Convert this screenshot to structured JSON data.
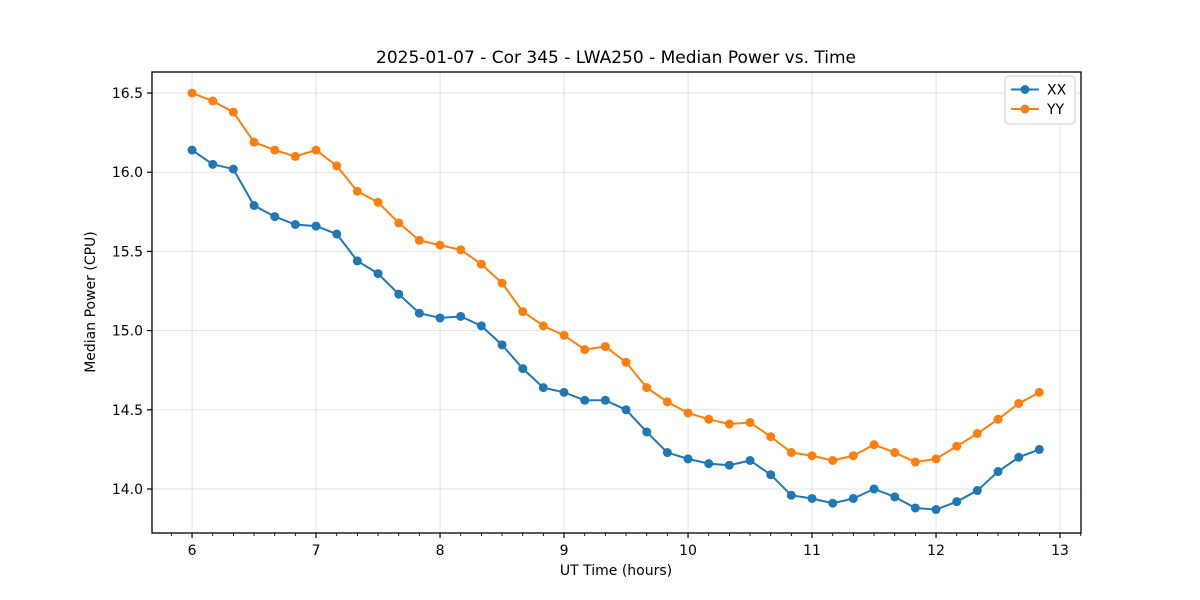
{
  "title": "2025-01-07 - Cor 345 - LWA250 - Median Power vs. Time",
  "chart_data": {
    "type": "line",
    "title": "2025-01-07 - Cor 345 - LWA250 - Median Power vs. Time",
    "xlabel": "UT Time (hours)",
    "ylabel": "Median Power (CPU)",
    "xlim": [
      5.677,
      13.169
    ],
    "ylim": [
      13.722,
      16.633
    ],
    "xticks": [
      6,
      7,
      8,
      9,
      10,
      11,
      12,
      13
    ],
    "yticks": [
      14.0,
      14.5,
      15.0,
      15.5,
      16.0,
      16.5
    ],
    "x_minor_step": 0.16667,
    "grid": true,
    "legend_position": "upper right",
    "marker": "circle",
    "x": [
      6.0,
      6.167,
      6.333,
      6.5,
      6.667,
      6.833,
      7.0,
      7.167,
      7.333,
      7.5,
      7.667,
      7.833,
      8.0,
      8.167,
      8.333,
      8.5,
      8.667,
      8.833,
      9.0,
      9.167,
      9.333,
      9.5,
      9.667,
      9.833,
      10.0,
      10.167,
      10.333,
      10.5,
      10.667,
      10.833,
      11.0,
      11.167,
      11.333,
      11.5,
      11.667,
      11.833,
      12.0,
      12.167,
      12.333,
      12.5,
      12.667,
      12.833
    ],
    "series": [
      {
        "name": "XX",
        "color": "#1f77b4",
        "values": [
          16.14,
          16.05,
          16.02,
          15.79,
          15.72,
          15.67,
          15.66,
          15.61,
          15.44,
          15.36,
          15.23,
          15.11,
          15.08,
          15.09,
          15.03,
          14.91,
          14.76,
          14.64,
          14.61,
          14.56,
          14.56,
          14.5,
          14.36,
          14.23,
          14.19,
          14.16,
          14.15,
          14.18,
          14.09,
          13.96,
          13.94,
          13.91,
          13.94,
          14.0,
          13.95,
          13.88,
          13.87,
          13.92,
          13.99,
          14.11,
          14.2,
          14.25
        ]
      },
      {
        "name": "YY",
        "color": "#ff7f0e",
        "values": [
          16.5,
          16.45,
          16.38,
          16.19,
          16.14,
          16.1,
          16.14,
          16.04,
          15.88,
          15.81,
          15.68,
          15.57,
          15.54,
          15.51,
          15.42,
          15.3,
          15.12,
          15.03,
          14.97,
          14.88,
          14.9,
          14.8,
          14.64,
          14.55,
          14.48,
          14.44,
          14.41,
          14.42,
          14.33,
          14.23,
          14.21,
          14.18,
          14.21,
          14.28,
          14.23,
          14.17,
          14.19,
          14.27,
          14.35,
          14.44,
          14.54,
          14.61
        ]
      }
    ],
    "legend": {
      "entries": [
        "XX",
        "YY"
      ]
    }
  }
}
